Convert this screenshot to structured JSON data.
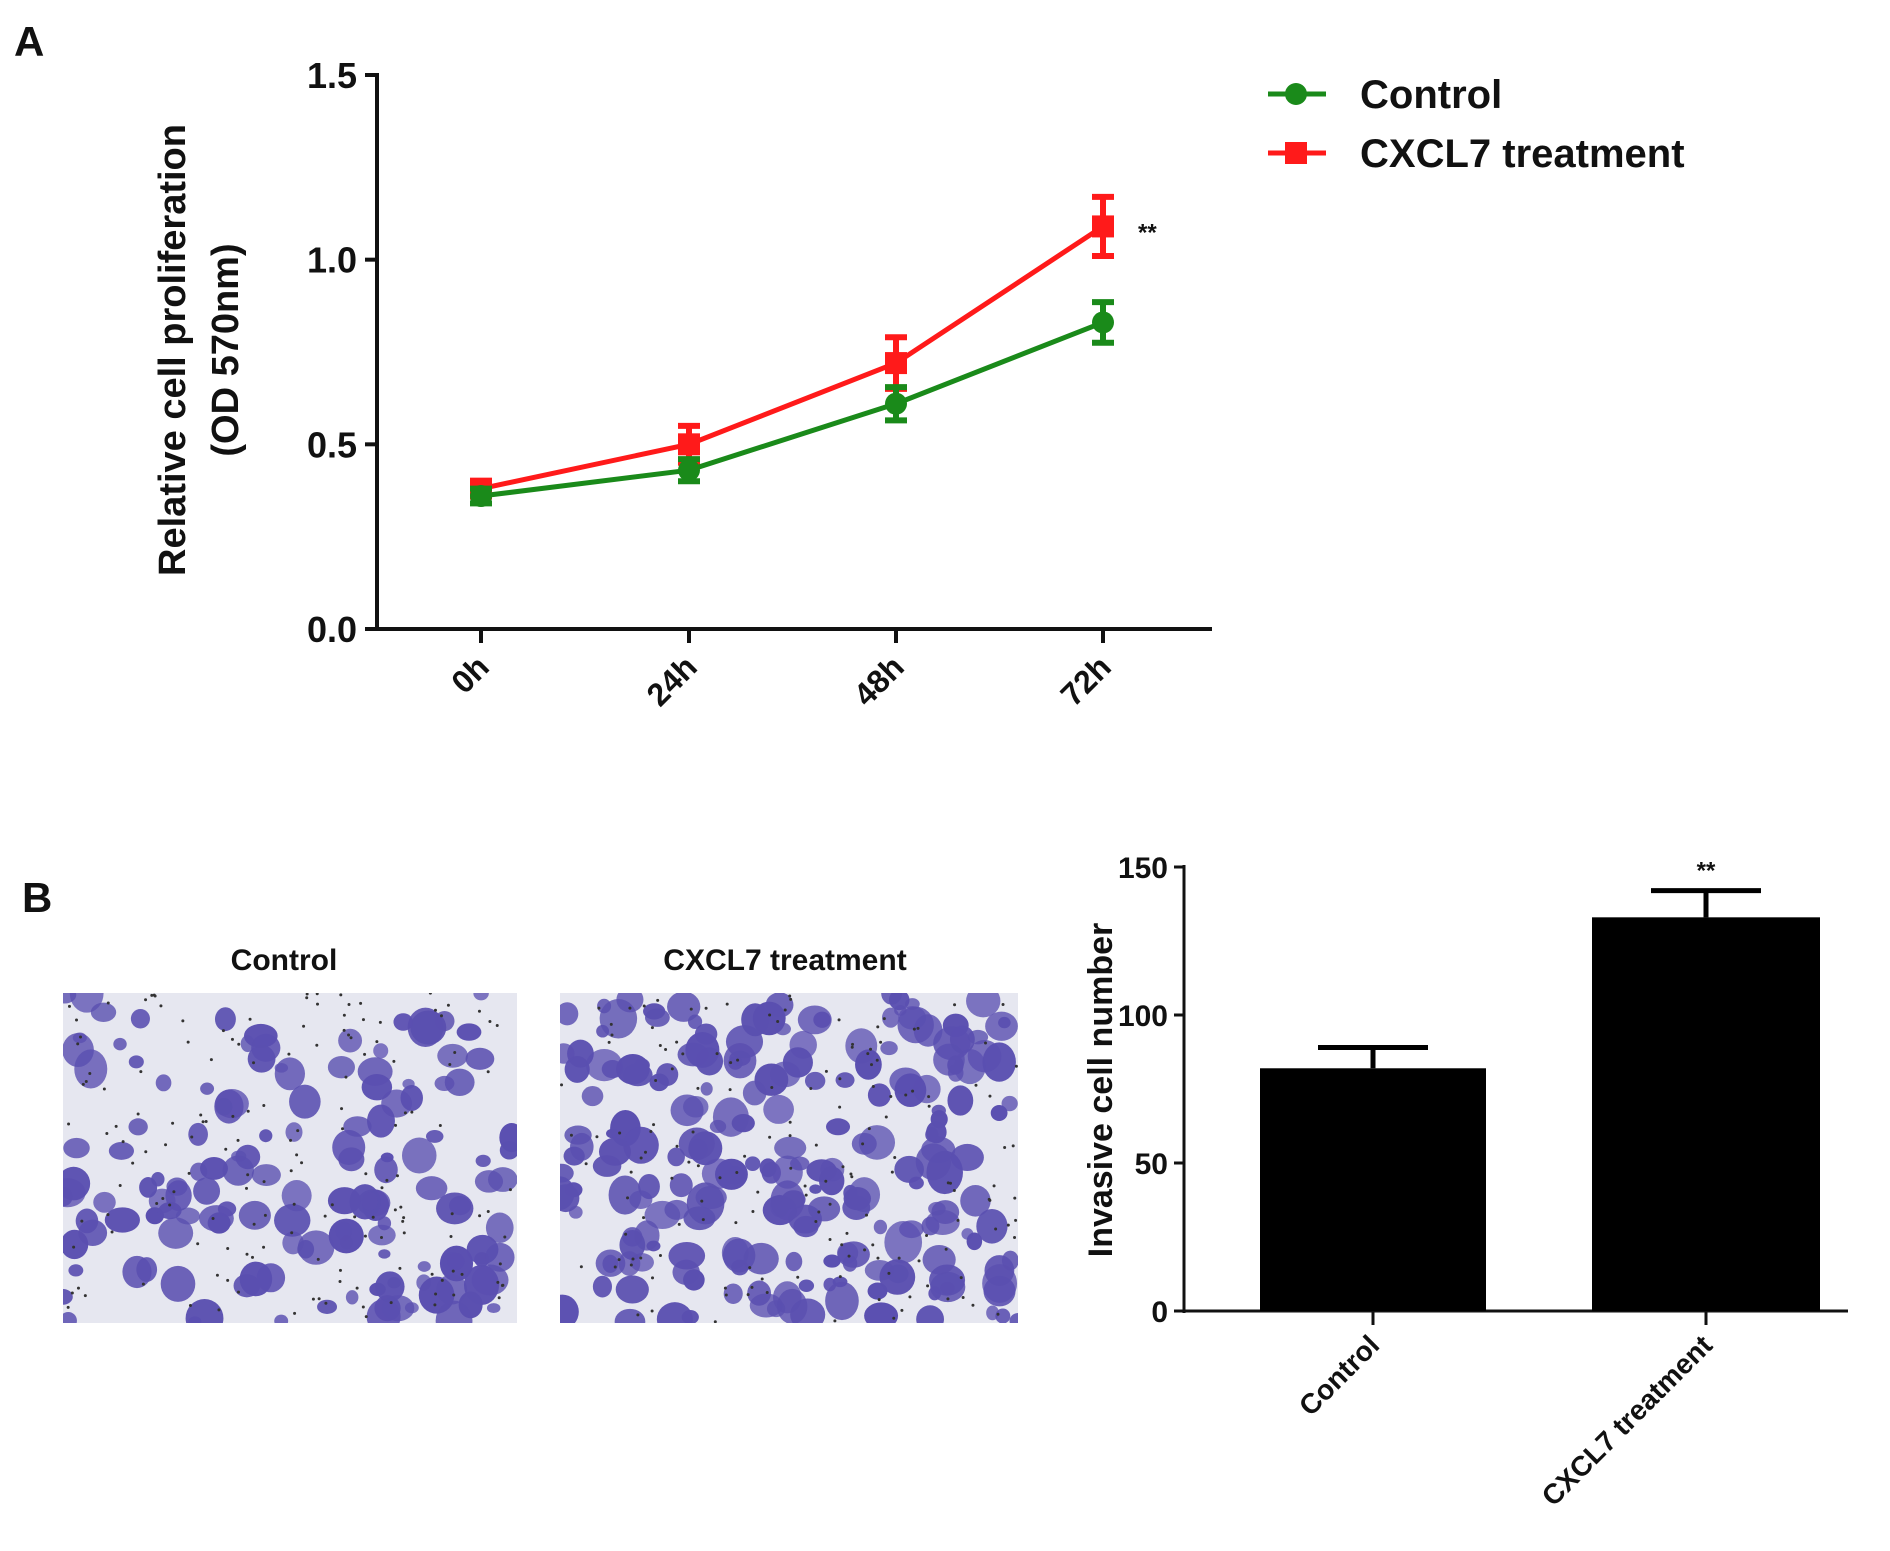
{
  "panel_labels": [
    "A",
    "B"
  ],
  "chart_data": [
    {
      "type": "line",
      "ylabel_line1": "Relative cell proliferation",
      "ylabel_line2": "(OD 570nm)",
      "categories": [
        "0h",
        "24h",
        "48h",
        "72h"
      ],
      "ylim": [
        0,
        1.5
      ],
      "yticks": [
        "0.0",
        "0.5",
        "1.0",
        "1.5"
      ],
      "legend_position": "top-right",
      "annotation": "**",
      "series": [
        {
          "name": "Control",
          "color": "#1a8a1a",
          "marker": "circle",
          "values": [
            0.36,
            0.43,
            0.61,
            0.83
          ],
          "errors": [
            0.02,
            0.03,
            0.045,
            0.055
          ]
        },
        {
          "name": "CXCL7 treatment",
          "color": "#ff1a1a",
          "marker": "square",
          "values": [
            0.38,
            0.5,
            0.72,
            1.09
          ],
          "errors": [
            0.02,
            0.05,
            0.07,
            0.08
          ]
        }
      ]
    },
    {
      "type": "bar",
      "ylabel": "Invasive cell number",
      "categories": [
        "Control",
        "CXCL7 treatment"
      ],
      "values": [
        82,
        133
      ],
      "errors": [
        7,
        9
      ],
      "ylim": [
        0,
        150
      ],
      "yticks": [
        "0",
        "50",
        "100",
        "150"
      ],
      "annotation": "**",
      "bar_color": "#000000"
    }
  ],
  "micrographs": [
    {
      "label": "Control",
      "stain_color": "#5a4fb0"
    },
    {
      "label": "CXCL7 treatment",
      "stain_color": "#5a4fb0"
    }
  ]
}
